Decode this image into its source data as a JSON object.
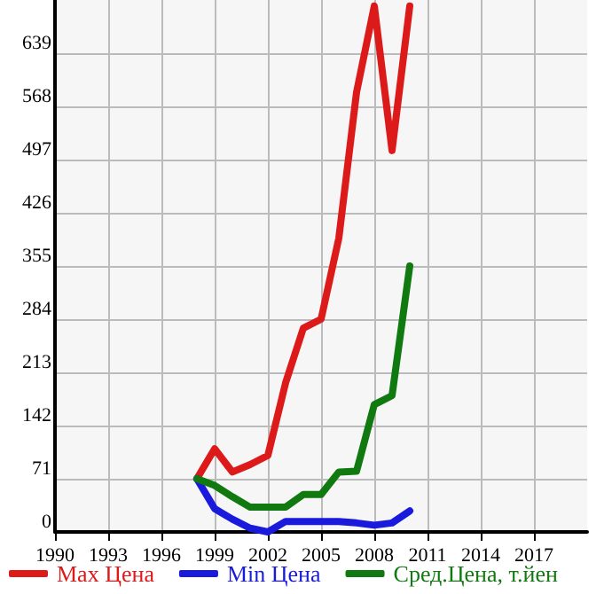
{
  "chart_data": {
    "type": "line",
    "x": [
      1998,
      1999,
      2000,
      2001,
      2002,
      2003,
      2004,
      2005,
      2006,
      2007,
      2008,
      2009,
      2010
    ],
    "series": [
      {
        "name": "Max Цена",
        "color": "#dd1a1a",
        "values": [
          71,
          111,
          80,
          90,
          102,
          199,
          272,
          284,
          392,
          587,
          702,
          509,
          702
        ]
      },
      {
        "name": "Min Цена",
        "color": "#1a1add",
        "values": [
          71,
          31,
          17,
          5,
          0,
          14,
          14,
          14,
          14,
          12,
          9,
          12,
          28
        ]
      },
      {
        "name": "Сред.Цена, т.йен",
        "color": "#107a10",
        "values": [
          71,
          62,
          47,
          33,
          33,
          33,
          50,
          50,
          80,
          81,
          170,
          182,
          355
        ]
      }
    ],
    "xlim": [
      1990,
      2020
    ],
    "xticks": [
      1990,
      1993,
      1996,
      1999,
      2002,
      2005,
      2008,
      2011,
      2014,
      2017
    ],
    "ylim": [
      0,
      710
    ],
    "yticks": [
      0,
      71,
      142,
      213,
      284,
      355,
      426,
      497,
      568,
      639
    ],
    "grid": true,
    "legend": "bottom",
    "marker": "none",
    "line_style": "solid"
  }
}
